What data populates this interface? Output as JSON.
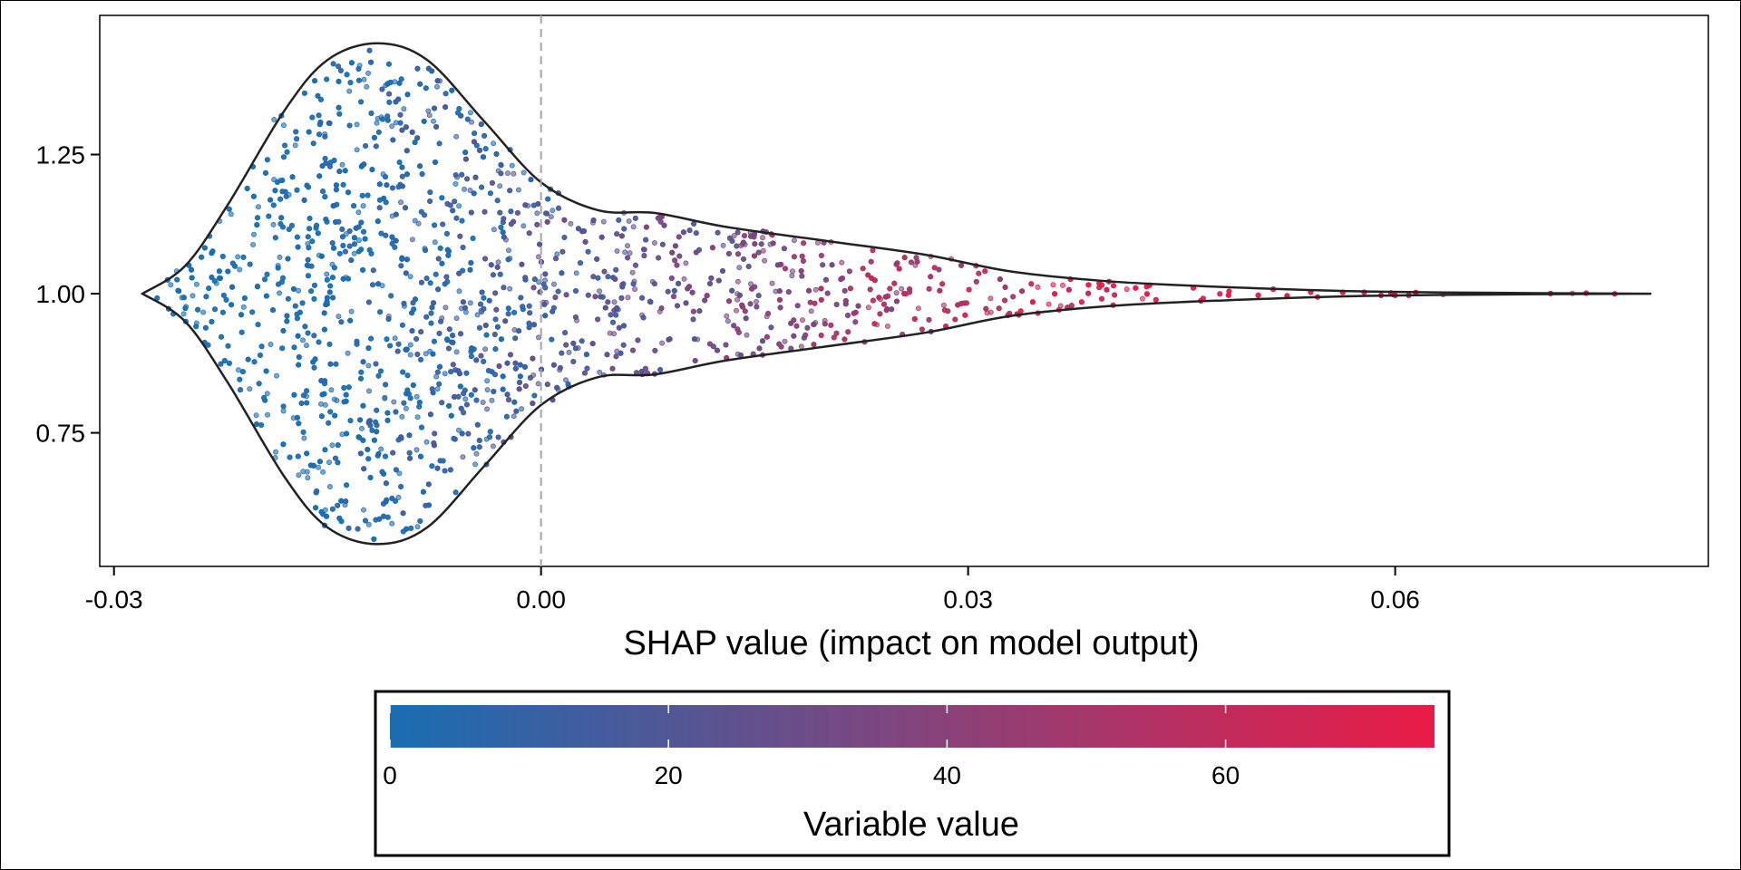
{
  "chart_data": {
    "type": "scatter",
    "subtype": "shap-violin-beeswarm",
    "xlabel": "SHAP value (impact on model output)",
    "ylabel": "",
    "xlim": [
      -0.031,
      0.082
    ],
    "ylim": [
      0.51,
      1.5
    ],
    "x_ticks": [
      {
        "value": -0.03,
        "label": "-0.03"
      },
      {
        "value": 0.0,
        "label": "0.00"
      },
      {
        "value": 0.03,
        "label": "0.03"
      },
      {
        "value": 0.06,
        "label": "0.06"
      }
    ],
    "y_ticks": [
      {
        "value": 0.75,
        "label": "0.75"
      },
      {
        "value": 1.0,
        "label": "1.00"
      },
      {
        "value": 1.25,
        "label": "1.25"
      }
    ],
    "reference_line": {
      "x": 0.0,
      "style": "dashed",
      "color": "#a6a6a6"
    },
    "y_center": 1.0,
    "violin_outline": [
      {
        "x": -0.028,
        "half_width": 0.0
      },
      {
        "x": -0.025,
        "half_width": 0.05
      },
      {
        "x": -0.022,
        "half_width": 0.16
      },
      {
        "x": -0.018,
        "half_width": 0.33
      },
      {
        "x": -0.015,
        "half_width": 0.42
      },
      {
        "x": -0.0115,
        "half_width": 0.45
      },
      {
        "x": -0.008,
        "half_width": 0.42
      },
      {
        "x": -0.004,
        "half_width": 0.31
      },
      {
        "x": 0.0,
        "half_width": 0.2
      },
      {
        "x": 0.004,
        "half_width": 0.15
      },
      {
        "x": 0.008,
        "half_width": 0.145
      },
      {
        "x": 0.013,
        "half_width": 0.12
      },
      {
        "x": 0.02,
        "half_width": 0.095
      },
      {
        "x": 0.027,
        "half_width": 0.07
      },
      {
        "x": 0.033,
        "half_width": 0.04
      },
      {
        "x": 0.04,
        "half_width": 0.022
      },
      {
        "x": 0.048,
        "half_width": 0.012
      },
      {
        "x": 0.058,
        "half_width": 0.004
      },
      {
        "x": 0.07,
        "half_width": 0.001
      },
      {
        "x": 0.078,
        "half_width": 0.0
      }
    ],
    "point_count": 4000,
    "point_color_variable": "Variable value",
    "colorbar": {
      "title": "Variable value",
      "range": [
        0,
        75
      ],
      "low_color": "#1a6db3",
      "high_color": "#ea1a45",
      "ticks": [
        {
          "value": 0,
          "label": "0"
        },
        {
          "value": 20,
          "label": "20"
        },
        {
          "value": 40,
          "label": "40"
        },
        {
          "value": 60,
          "label": "60"
        }
      ]
    },
    "grid": false
  }
}
